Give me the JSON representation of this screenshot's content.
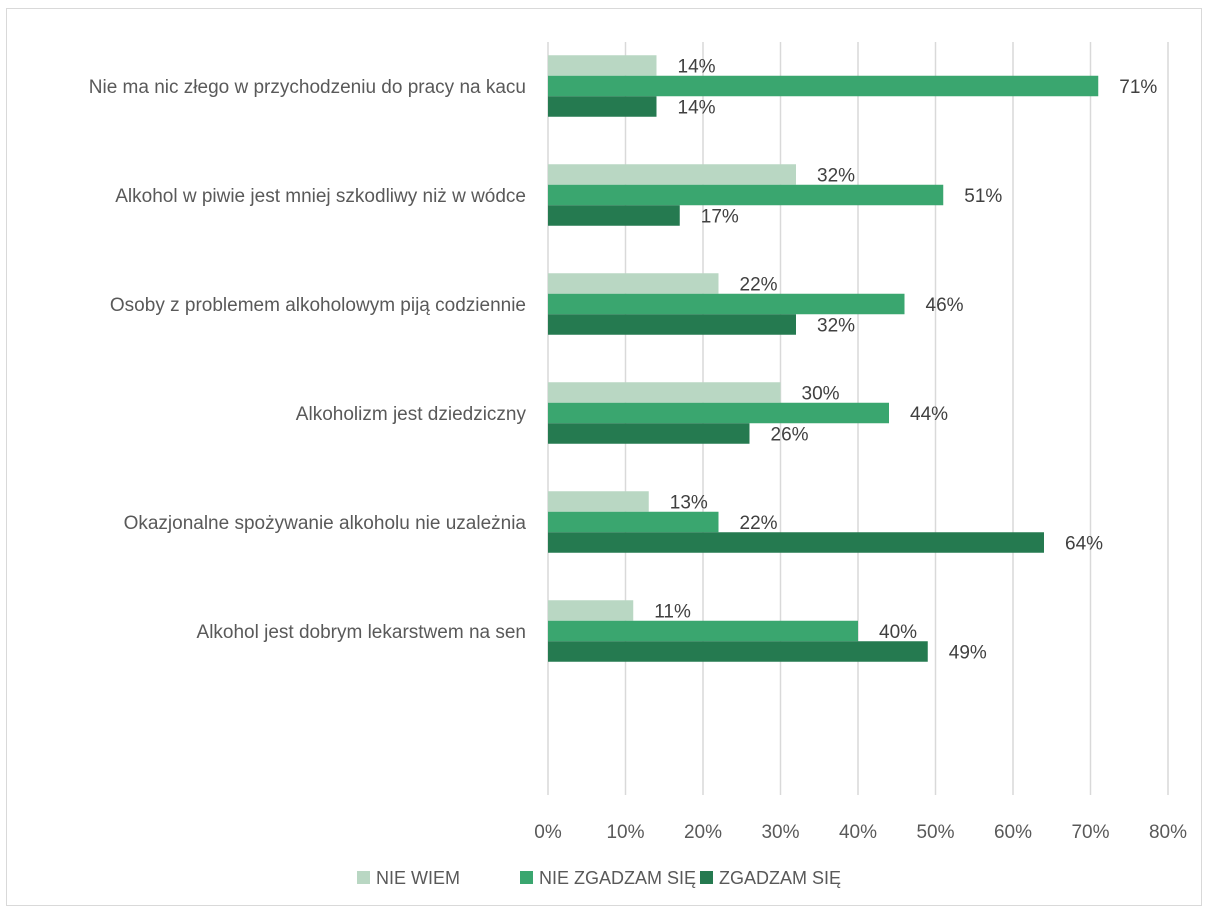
{
  "chart_data": {
    "type": "bar",
    "orientation": "horizontal",
    "categories": [
      "Nie ma nic złego w przychodzeniu do pracy na kacu",
      "Alkohol w piwie jest mniej szkodliwy niż w wódce",
      "Osoby z problemem alkoholowym piją codziennie",
      "Alkoholizm jest dziedziczny",
      "Okazjonalne spożywanie alkoholu nie uzależnia",
      "Alkohol jest dobrym lekarstwem na sen"
    ],
    "series": [
      {
        "name": "NIE WIEM",
        "color": "#b9d7c3",
        "values": [
          14,
          32,
          22,
          30,
          13,
          11
        ],
        "labels": [
          "14%",
          "32%",
          "22%",
          "30%",
          "13%",
          "11%"
        ]
      },
      {
        "name": "NIE ZGADZAM SIĘ",
        "color": "#3aa66f",
        "values": [
          71,
          51,
          46,
          44,
          22,
          40
        ],
        "labels": [
          "71%",
          "51%",
          "46%",
          "44%",
          "22%",
          "40%"
        ]
      },
      {
        "name": "ZGADZAM SIĘ",
        "color": "#257a50",
        "values": [
          14,
          17,
          32,
          26,
          64,
          49
        ],
        "labels": [
          "14%",
          "17%",
          "32%",
          "26%",
          "64%",
          "49%"
        ]
      }
    ],
    "xlim": [
      0,
      80
    ],
    "x_ticks": [
      0,
      10,
      20,
      30,
      40,
      50,
      60,
      70,
      80
    ],
    "x_tick_labels": [
      "0%",
      "10%",
      "20%",
      "30%",
      "40%",
      "50%",
      "60%",
      "70%",
      "80%"
    ],
    "grid": "vertical",
    "legend_position": "bottom",
    "title": "",
    "xlabel": "",
    "ylabel": ""
  }
}
